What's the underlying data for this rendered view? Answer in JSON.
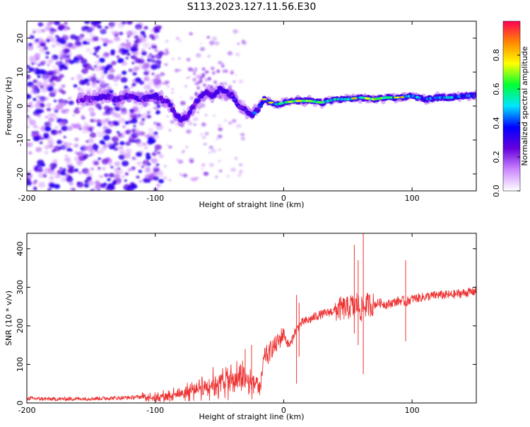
{
  "figure": {
    "title": "S113.2023.127.11.56.E30"
  },
  "chart_data": [
    {
      "type": "heatmap",
      "title": "S113.2023.127.11.56.E30",
      "xlabel": "Height of straight line (km)",
      "ylabel": "Frequency (Hz)",
      "xlim": [
        -200,
        150
      ],
      "ylim": [
        -25,
        25
      ],
      "xticks": [
        -200,
        -100,
        0,
        100
      ],
      "yticks": [
        -20,
        -10,
        0,
        10,
        20
      ],
      "colorbar": {
        "label": "Normalized spectral amplitude",
        "range": [
          0,
          1
        ],
        "ticks": [
          0.0,
          0.2,
          0.4,
          0.6,
          0.8
        ],
        "colormap": [
          "#ffffff",
          "#cc88ff",
          "#6600dd",
          "#0000ff",
          "#00e5ff",
          "#00ff33",
          "#ffff00",
          "#ff8800",
          "#ff0055"
        ]
      },
      "ridge": {
        "x": [
          -150,
          -140,
          -130,
          -120,
          -110,
          -100,
          -95,
          -90,
          -85,
          -80,
          -75,
          -70,
          -65,
          -60,
          -55,
          -50,
          -45,
          -40,
          -35,
          -30,
          -25,
          -20,
          -15,
          -10,
          -5,
          0,
          10,
          20,
          30,
          40,
          50,
          60,
          70,
          80,
          90,
          100,
          110,
          120,
          130,
          140,
          150
        ],
        "y": [
          2,
          3,
          2,
          3,
          2,
          3,
          2,
          1,
          -2,
          -4,
          -3,
          0,
          3,
          4,
          3,
          5,
          4,
          3,
          0,
          -1,
          -3,
          -1,
          2,
          1,
          0.5,
          1,
          1.5,
          1.5,
          1,
          2,
          2,
          2.5,
          2,
          2.5,
          2.5,
          3,
          2,
          2.5,
          2.5,
          3,
          3
        ],
        "amplitude": [
          0.2,
          0.3,
          0.25,
          0.3,
          0.25,
          0.4,
          0.3,
          0.35,
          0.3,
          0.4,
          0.35,
          0.3,
          0.35,
          0.4,
          0.35,
          0.45,
          0.35,
          0.3,
          0.3,
          0.35,
          0.5,
          0.4,
          0.5,
          0.6,
          0.7,
          0.75,
          0.8,
          0.8,
          0.75,
          0.7,
          0.65,
          0.7,
          0.85,
          0.7,
          0.65,
          0.6,
          0.5,
          0.55,
          0.6,
          0.5,
          0.5
        ]
      }
    },
    {
      "type": "line",
      "title": "",
      "xlabel": "Height of straight line (km)",
      "ylabel": "SNR (10 * v/v)",
      "xlim": [
        -200,
        150
      ],
      "ylim": [
        0,
        440
      ],
      "xticks": [
        -200,
        -100,
        0,
        100
      ],
      "yticks": [
        0,
        100,
        200,
        300,
        400
      ],
      "grid": false,
      "line_color": "#ee3333",
      "series": [
        {
          "name": "",
          "x": [
            -200,
            -180,
            -160,
            -140,
            -120,
            -110,
            -100,
            -95,
            -90,
            -85,
            -80,
            -75,
            -70,
            -65,
            -60,
            -55,
            -50,
            -45,
            -40,
            -35,
            -30,
            -25,
            -20,
            -18,
            -16,
            -14,
            -12,
            -10,
            -8,
            -6,
            -4,
            -2,
            0,
            2,
            4,
            6,
            8,
            10,
            12,
            15,
            20,
            25,
            30,
            35,
            40,
            45,
            50,
            53,
            55,
            57,
            60,
            62,
            65,
            70,
            75,
            80,
            85,
            90,
            93,
            95,
            97,
            100,
            110,
            120,
            130,
            140,
            150
          ],
          "y": [
            12,
            10,
            11,
            12,
            14,
            16,
            15,
            18,
            20,
            22,
            25,
            28,
            35,
            42,
            45,
            50,
            55,
            60,
            58,
            62,
            60,
            55,
            48,
            35,
            100,
            130,
            120,
            140,
            145,
            150,
            160,
            170,
            185,
            160,
            150,
            155,
            180,
            190,
            200,
            210,
            215,
            225,
            230,
            235,
            240,
            245,
            245,
            255,
            240,
            260,
            240,
            250,
            255,
            255,
            260,
            255,
            260,
            265,
            265,
            260,
            265,
            270,
            275,
            280,
            280,
            285,
            290
          ]
        }
      ],
      "spikes": [
        {
          "x": -30,
          "low": 40,
          "high": 140
        },
        {
          "x": -25,
          "low": 35,
          "high": 150
        },
        {
          "x": 10,
          "low": 50,
          "high": 280
        },
        {
          "x": 12,
          "low": 120,
          "high": 260
        },
        {
          "x": 55,
          "low": 180,
          "high": 410
        },
        {
          "x": 58,
          "low": 150,
          "high": 370
        },
        {
          "x": 62,
          "low": 75,
          "high": 440
        },
        {
          "x": 95,
          "low": 160,
          "high": 370
        }
      ]
    }
  ]
}
